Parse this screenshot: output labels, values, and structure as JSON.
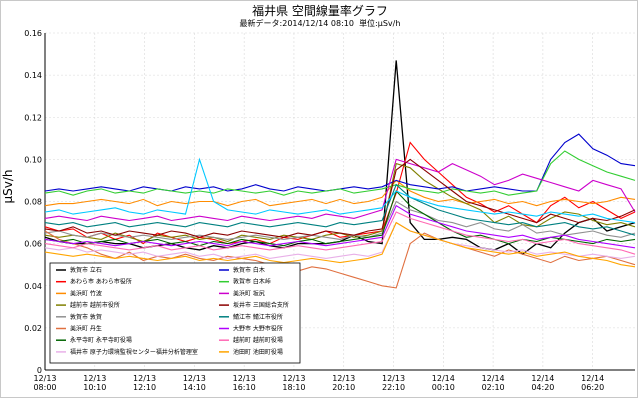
{
  "chart_data": {
    "type": "line",
    "title": "福井県 空間線量率グラフ",
    "subtitle_parts": [
      "最新データ:",
      "2014/12/14 08:10",
      "単位:",
      "μSv/h"
    ],
    "ylabel": "μSv/h",
    "ylim": [
      0,
      0.16
    ],
    "yticks": [
      "0.16",
      "0.14",
      "0.12",
      "0.10",
      "0.08",
      "0.06",
      "0.04",
      "0.02",
      "0"
    ],
    "ytick_values": [
      0.16,
      0.14,
      0.12,
      0.1,
      0.08,
      0.06,
      0.04,
      0.02,
      0
    ],
    "xticks": [
      {
        "date": "12/13",
        "time": "08:00"
      },
      {
        "date": "12/13",
        "time": "10:10"
      },
      {
        "date": "12/13",
        "time": "12:10"
      },
      {
        "date": "12/13",
        "time": "14:10"
      },
      {
        "date": "12/13",
        "time": "16:10"
      },
      {
        "date": "12/13",
        "time": "18:10"
      },
      {
        "date": "12/13",
        "time": "20:10"
      },
      {
        "date": "12/13",
        "time": "22:10"
      },
      {
        "date": "12/14",
        "time": "00:10"
      },
      {
        "date": "12/14",
        "time": "02:10"
      },
      {
        "date": "12/14",
        "time": "04:20"
      },
      {
        "date": "12/14",
        "time": "06:20"
      }
    ],
    "grid": true,
    "legend_position": "bottom-left",
    "series": [
      {
        "name": "敦賀市 立石",
        "color": "#000000",
        "values": [
          0.063,
          0.061,
          0.06,
          0.06,
          0.061,
          0.06,
          0.06,
          0.058,
          0.059,
          0.06,
          0.058,
          0.057,
          0.059,
          0.058,
          0.06,
          0.061,
          0.059,
          0.058,
          0.06,
          0.06,
          0.06,
          0.061,
          0.064,
          0.061,
          0.06,
          0.147,
          0.07,
          0.062,
          0.062,
          0.063,
          0.062,
          0.058,
          0.057,
          0.06,
          0.055,
          0.06,
          0.058,
          0.065,
          0.07,
          0.072,
          0.066,
          0.068,
          0.07
        ]
      },
      {
        "name": "あわら市 あわら市役所",
        "color": "#ff0000",
        "values": [
          0.068,
          0.066,
          0.067,
          0.063,
          0.065,
          0.062,
          0.064,
          0.06,
          0.065,
          0.063,
          0.061,
          0.063,
          0.062,
          0.06,
          0.061,
          0.062,
          0.06,
          0.063,
          0.062,
          0.064,
          0.066,
          0.063,
          0.064,
          0.065,
          0.066,
          0.084,
          0.108,
          0.1,
          0.094,
          0.088,
          0.082,
          0.079,
          0.075,
          0.078,
          0.074,
          0.07,
          0.078,
          0.082,
          0.077,
          0.08,
          0.076,
          0.072,
          0.075
        ]
      },
      {
        "name": "美浜町 竹波",
        "color": "#ff8c00",
        "values": [
          0.078,
          0.079,
          0.079,
          0.08,
          0.081,
          0.08,
          0.079,
          0.081,
          0.078,
          0.08,
          0.079,
          0.08,
          0.08,
          0.078,
          0.08,
          0.081,
          0.078,
          0.079,
          0.08,
          0.081,
          0.079,
          0.081,
          0.079,
          0.08,
          0.082,
          0.09,
          0.085,
          0.082,
          0.08,
          0.081,
          0.079,
          0.08,
          0.081,
          0.079,
          0.08,
          0.078,
          0.08,
          0.081,
          0.08,
          0.079,
          0.08,
          0.082,
          0.081
        ]
      },
      {
        "name": "越前市 越前市役所",
        "color": "#808000",
        "values": [
          0.064,
          0.063,
          0.064,
          0.063,
          0.062,
          0.065,
          0.063,
          0.061,
          0.064,
          0.063,
          0.064,
          0.062,
          0.063,
          0.061,
          0.064,
          0.063,
          0.062,
          0.064,
          0.063,
          0.062,
          0.064,
          0.065,
          0.063,
          0.064,
          0.066,
          0.098,
          0.096,
          0.09,
          0.086,
          0.082,
          0.079,
          0.076,
          0.07,
          0.073,
          0.069,
          0.068,
          0.072,
          0.075,
          0.074,
          0.071,
          0.069,
          0.07,
          0.068
        ]
      },
      {
        "name": "敦賀市 敦賀",
        "color": "#909090",
        "values": [
          0.065,
          0.066,
          0.064,
          0.063,
          0.065,
          0.064,
          0.063,
          0.064,
          0.063,
          0.062,
          0.063,
          0.064,
          0.063,
          0.062,
          0.063,
          0.064,
          0.063,
          0.062,
          0.063,
          0.064,
          0.063,
          0.062,
          0.064,
          0.063,
          0.065,
          0.08,
          0.076,
          0.074,
          0.071,
          0.07,
          0.068,
          0.07,
          0.067,
          0.066,
          0.069,
          0.065,
          0.066,
          0.064,
          0.065,
          0.066,
          0.064,
          0.063,
          0.065
        ]
      },
      {
        "name": "美浜町 丹生",
        "color": "#e07040",
        "values": [
          0.066,
          0.062,
          0.06,
          0.058,
          0.055,
          0.053,
          0.056,
          0.052,
          0.054,
          0.053,
          0.055,
          0.053,
          0.052,
          0.054,
          0.053,
          0.052,
          0.05,
          0.049,
          0.047,
          0.049,
          0.048,
          0.046,
          0.044,
          0.042,
          0.04,
          0.039,
          0.06,
          0.065,
          0.062,
          0.06,
          0.058,
          0.056,
          0.054,
          0.057,
          0.055,
          0.053,
          0.051,
          0.054,
          0.052,
          0.053,
          0.054,
          0.052,
          0.05
        ]
      },
      {
        "name": "永平寺町 永平寺町役場",
        "color": "#006400",
        "values": [
          0.062,
          0.061,
          0.062,
          0.06,
          0.061,
          0.062,
          0.06,
          0.061,
          0.062,
          0.06,
          0.061,
          0.059,
          0.061,
          0.06,
          0.062,
          0.061,
          0.06,
          0.059,
          0.061,
          0.062,
          0.06,
          0.061,
          0.062,
          0.063,
          0.064,
          0.085,
          0.078,
          0.074,
          0.07,
          0.066,
          0.063,
          0.064,
          0.062,
          0.06,
          0.062,
          0.061,
          0.063,
          0.062,
          0.061,
          0.06,
          0.062,
          0.061,
          0.062
        ]
      },
      {
        "name": "福井市 原子力環境監視センター福井分析管理室",
        "color": "#e8b0e8",
        "values": [
          0.058,
          0.057,
          0.058,
          0.056,
          0.057,
          0.056,
          0.055,
          0.056,
          0.054,
          0.055,
          0.056,
          0.054,
          0.055,
          0.053,
          0.054,
          0.055,
          0.053,
          0.054,
          0.055,
          0.054,
          0.053,
          0.054,
          0.055,
          0.054,
          0.056,
          0.07,
          0.066,
          0.064,
          0.062,
          0.06,
          0.059,
          0.058,
          0.057,
          0.056,
          0.057,
          0.055,
          0.056,
          0.055,
          0.054,
          0.055,
          0.054,
          0.053,
          0.054
        ]
      },
      {
        "name": "敦賀市 白木",
        "color": "#0000cd",
        "values": [
          0.085,
          0.086,
          0.085,
          0.086,
          0.087,
          0.086,
          0.085,
          0.087,
          0.086,
          0.085,
          0.087,
          0.086,
          0.087,
          0.085,
          0.086,
          0.088,
          0.086,
          0.085,
          0.087,
          0.086,
          0.085,
          0.086,
          0.087,
          0.086,
          0.087,
          0.09,
          0.088,
          0.087,
          0.086,
          0.087,
          0.085,
          0.086,
          0.087,
          0.086,
          0.085,
          0.085,
          0.1,
          0.108,
          0.112,
          0.105,
          0.102,
          0.098,
          0.097
        ]
      },
      {
        "name": "敦賀市 白木峠",
        "color": "#32cd32",
        "values": [
          0.084,
          0.085,
          0.083,
          0.085,
          0.086,
          0.084,
          0.085,
          0.084,
          0.086,
          0.085,
          0.084,
          0.085,
          0.084,
          0.086,
          0.085,
          0.084,
          0.085,
          0.083,
          0.085,
          0.084,
          0.085,
          0.086,
          0.084,
          0.085,
          0.086,
          0.088,
          0.086,
          0.085,
          0.084,
          0.086,
          0.085,
          0.084,
          0.085,
          0.083,
          0.084,
          0.085,
          0.098,
          0.104,
          0.1,
          0.097,
          0.094,
          0.092,
          0.09
        ]
      },
      {
        "name": "美浜町 坂尻",
        "color": "#cc00cc",
        "values": [
          0.072,
          0.073,
          0.072,
          0.071,
          0.073,
          0.072,
          0.071,
          0.072,
          0.073,
          0.071,
          0.072,
          0.073,
          0.072,
          0.071,
          0.073,
          0.072,
          0.071,
          0.072,
          0.073,
          0.072,
          0.074,
          0.073,
          0.072,
          0.074,
          0.076,
          0.1,
          0.098,
          0.096,
          0.094,
          0.098,
          0.095,
          0.092,
          0.088,
          0.09,
          0.093,
          0.091,
          0.089,
          0.087,
          0.085,
          0.09,
          0.088,
          0.086,
          0.075
        ]
      },
      {
        "name": "坂井市 三国総合支所",
        "color": "#8b0000",
        "values": [
          0.067,
          0.066,
          0.068,
          0.065,
          0.066,
          0.064,
          0.066,
          0.065,
          0.064,
          0.066,
          0.065,
          0.063,
          0.065,
          0.064,
          0.066,
          0.065,
          0.064,
          0.063,
          0.065,
          0.064,
          0.066,
          0.065,
          0.064,
          0.066,
          0.067,
          0.095,
          0.1,
          0.095,
          0.09,
          0.085,
          0.08,
          0.078,
          0.076,
          0.074,
          0.072,
          0.07,
          0.074,
          0.072,
          0.07,
          0.072,
          0.071,
          0.073,
          0.076
        ]
      },
      {
        "name": "鯖江市 鯖江市役所",
        "color": "#008080",
        "values": [
          0.07,
          0.069,
          0.07,
          0.068,
          0.069,
          0.07,
          0.068,
          0.069,
          0.07,
          0.069,
          0.068,
          0.07,
          0.069,
          0.068,
          0.07,
          0.069,
          0.068,
          0.069,
          0.07,
          0.069,
          0.068,
          0.07,
          0.069,
          0.07,
          0.071,
          0.088,
          0.082,
          0.079,
          0.076,
          0.074,
          0.072,
          0.071,
          0.07,
          0.069,
          0.07,
          0.068,
          0.069,
          0.07,
          0.068,
          0.067,
          0.068,
          0.066,
          0.064
        ]
      },
      {
        "name": "大野市 大野市役所",
        "color": "#b000ff",
        "values": [
          0.062,
          0.061,
          0.06,
          0.061,
          0.06,
          0.059,
          0.06,
          0.061,
          0.06,
          0.059,
          0.06,
          0.061,
          0.06,
          0.059,
          0.061,
          0.06,
          0.059,
          0.06,
          0.061,
          0.06,
          0.059,
          0.06,
          0.061,
          0.062,
          0.063,
          0.078,
          0.074,
          0.072,
          0.07,
          0.068,
          0.066,
          0.065,
          0.064,
          0.063,
          0.064,
          0.062,
          0.063,
          0.064,
          0.062,
          0.061,
          0.06,
          0.059,
          0.058
        ]
      },
      {
        "name": "越前町 越前町役場",
        "color": "#ff69b4",
        "values": [
          0.06,
          0.059,
          0.058,
          0.06,
          0.059,
          0.058,
          0.057,
          0.058,
          0.059,
          0.057,
          0.058,
          0.059,
          0.057,
          0.058,
          0.059,
          0.058,
          0.057,
          0.058,
          0.059,
          0.058,
          0.057,
          0.058,
          0.059,
          0.06,
          0.061,
          0.075,
          0.072,
          0.07,
          0.068,
          0.066,
          0.064,
          0.063,
          0.062,
          0.061,
          0.062,
          0.06,
          0.061,
          0.062,
          0.06,
          0.059,
          0.058,
          0.057,
          0.055
        ]
      },
      {
        "name": "池田町 池田町役場",
        "color": "#ffa500",
        "values": [
          0.056,
          0.055,
          0.054,
          0.055,
          0.054,
          0.053,
          0.054,
          0.053,
          0.052,
          0.053,
          0.054,
          0.052,
          0.053,
          0.052,
          0.053,
          0.054,
          0.052,
          0.051,
          0.052,
          0.053,
          0.052,
          0.051,
          0.052,
          0.053,
          0.055,
          0.07,
          0.066,
          0.064,
          0.062,
          0.06,
          0.058,
          0.057,
          0.056,
          0.055,
          0.056,
          0.054,
          0.055,
          0.056,
          0.054,
          0.053,
          0.052,
          0.05,
          0.049
        ]
      },
      {
        "name": "",
        "color": "#00c8ff",
        "values": [
          0.075,
          0.076,
          0.074,
          0.075,
          0.076,
          0.077,
          0.075,
          0.074,
          0.076,
          0.075,
          0.074,
          0.1,
          0.08,
          0.076,
          0.075,
          0.074,
          0.076,
          0.075,
          0.074,
          0.075,
          0.076,
          0.074,
          0.075,
          0.076,
          0.077,
          0.085,
          0.082,
          0.08,
          0.078,
          0.077,
          0.076,
          0.075,
          0.074,
          0.075,
          0.074,
          0.073,
          0.075,
          0.074,
          0.073,
          0.074,
          0.072,
          0.071,
          0.07
        ]
      }
    ]
  }
}
